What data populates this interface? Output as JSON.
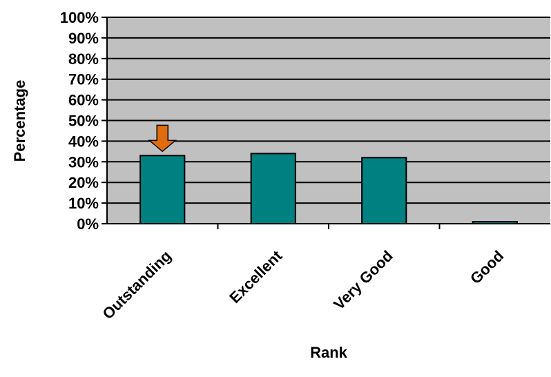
{
  "chart_data": {
    "type": "bar",
    "title": "",
    "xlabel": "Rank",
    "ylabel": "Percentage",
    "categories": [
      "Outstanding",
      "Excellent",
      "Very Good",
      "Good"
    ],
    "values": [
      33,
      34,
      32,
      1
    ],
    "ylim": [
      0,
      100
    ],
    "yticks": [
      "0%",
      "10%",
      "20%",
      "30%",
      "40%",
      "50%",
      "60%",
      "70%",
      "80%",
      "90%",
      "100%"
    ],
    "grid": true,
    "legend": "none",
    "highlight_category": "Outstanding",
    "colors": {
      "plot_background": "#c0c0c0",
      "bar": "#008080",
      "grid": "#000000",
      "highlight_arrow": "#e06c10"
    }
  }
}
